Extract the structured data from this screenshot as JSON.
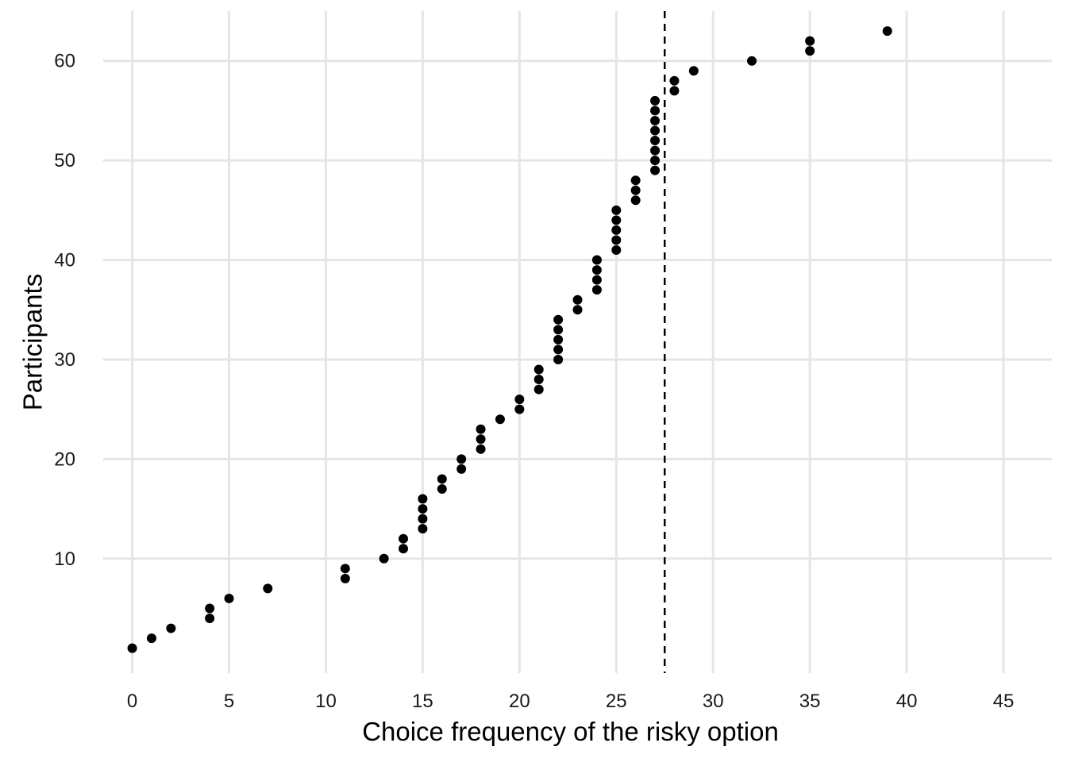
{
  "chart_data": {
    "type": "scatter",
    "title": "",
    "xlabel": "Choice frequency of the risky option",
    "ylabel": "Participants",
    "xlim": [
      -1.5,
      47.5
    ],
    "ylim": [
      -1.5,
      65
    ],
    "x_ticks": [
      0,
      5,
      10,
      15,
      20,
      25,
      30,
      35,
      40,
      45
    ],
    "y_ticks": [
      10,
      20,
      30,
      40,
      50,
      60
    ],
    "x_tick_labels": [
      "0",
      "5",
      "10",
      "15",
      "20",
      "25",
      "30",
      "35",
      "40",
      "45"
    ],
    "y_tick_labels": [
      "10",
      "20",
      "30",
      "40",
      "50",
      "60"
    ],
    "grid": true,
    "reference_line": {
      "orientation": "vertical",
      "x": 27.5,
      "style": "dashed"
    },
    "series": [
      {
        "x": [
          0,
          1,
          2,
          4,
          4,
          5,
          7,
          11,
          11,
          13,
          14,
          14,
          15,
          15,
          15,
          15,
          16,
          16,
          17,
          17,
          18,
          18,
          18,
          19,
          20,
          20,
          21,
          21,
          21,
          22,
          22,
          22,
          22,
          22,
          23,
          23,
          24,
          24,
          24,
          24,
          25,
          25,
          25,
          25,
          25,
          26,
          26,
          26,
          27,
          27,
          27,
          27,
          27,
          27,
          27,
          27,
          28,
          28,
          29,
          32,
          35,
          35,
          39
        ],
        "y": [
          1,
          2,
          3,
          4,
          5,
          6,
          7,
          8,
          9,
          10,
          11,
          12,
          13,
          14,
          15,
          16,
          17,
          18,
          19,
          20,
          21,
          22,
          23,
          24,
          25,
          26,
          27,
          28,
          29,
          30,
          31,
          32,
          33,
          34,
          35,
          36,
          37,
          38,
          39,
          40,
          41,
          42,
          43,
          44,
          45,
          46,
          47,
          48,
          49,
          50,
          51,
          52,
          53,
          54,
          55,
          56,
          57,
          58,
          59,
          60,
          61,
          62,
          63
        ]
      }
    ],
    "colors": {
      "points": "#000000",
      "grid": "#e5e5e5",
      "reference_line": "#000000",
      "background": "#ffffff"
    }
  }
}
